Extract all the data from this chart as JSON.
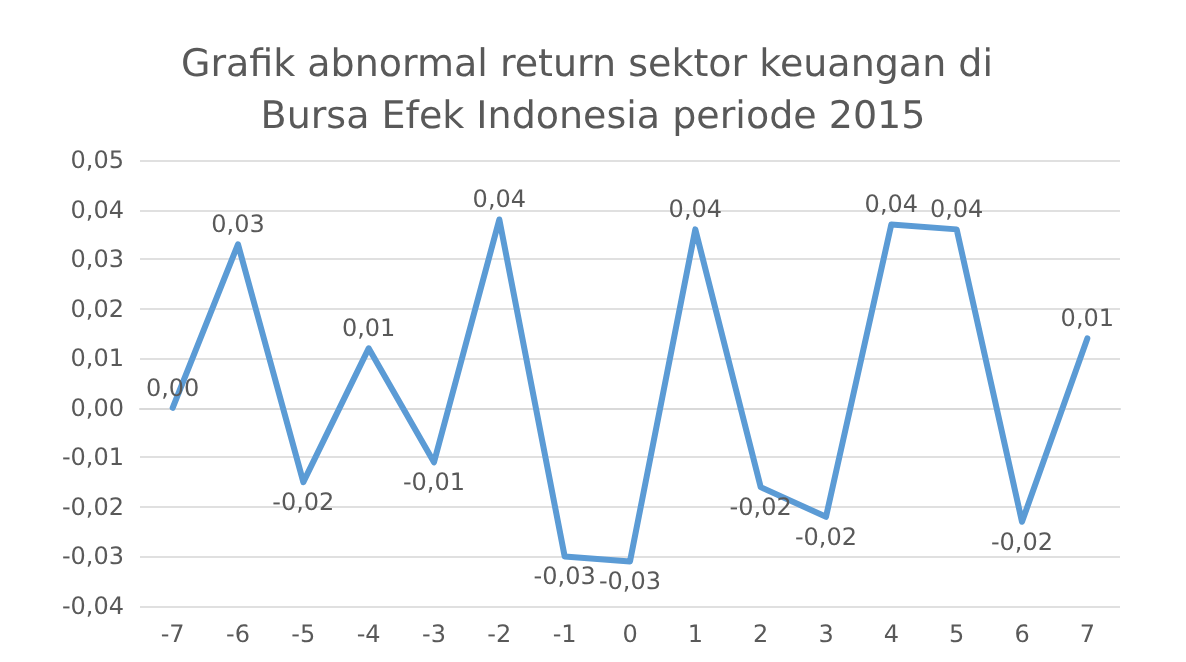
{
  "chart_data": {
    "type": "line",
    "title": "Grafik abnormal return sektor keuangan di Bursa Efek Indonesia periode 2015",
    "categories": [
      "-7",
      "-6",
      "-5",
      "-4",
      "-3",
      "-2",
      "-1",
      "0",
      "1",
      "2",
      "3",
      "4",
      "5",
      "6",
      "7"
    ],
    "series": [
      {
        "color": "#5b9bd5",
        "values": [
          0.0,
          0.033,
          -0.015,
          0.012,
          -0.011,
          0.038,
          -0.03,
          -0.031,
          0.036,
          -0.016,
          -0.022,
          0.037,
          0.036,
          -0.023,
          0.014
        ],
        "value_labels": [
          "0,00",
          "0,03",
          "-0,02",
          "0,01",
          "-0,01",
          "0,04",
          "-0,03",
          "-0,03",
          "0,04",
          "-0,02",
          "-0,02",
          "0,04",
          "0,04",
          "-0,02",
          "0,01"
        ]
      }
    ],
    "ylim": [
      -0.04,
      0.05
    ],
    "yticks": [
      {
        "value": -0.04,
        "label": "-0,04"
      },
      {
        "value": -0.03,
        "label": "-0,03"
      },
      {
        "value": -0.02,
        "label": "-0,02"
      },
      {
        "value": -0.01,
        "label": "-0,01"
      },
      {
        "value": 0,
        "label": "0,00"
      },
      {
        "value": 0.01,
        "label": "0,01"
      },
      {
        "value": 0.02,
        "label": "0,02"
      },
      {
        "value": 0.03,
        "label": "0,03"
      },
      {
        "value": 0.04,
        "label": "0,04"
      },
      {
        "value": 0.05,
        "label": "0,05"
      }
    ],
    "grid": "y",
    "marker": "none",
    "line_style": "solid"
  }
}
